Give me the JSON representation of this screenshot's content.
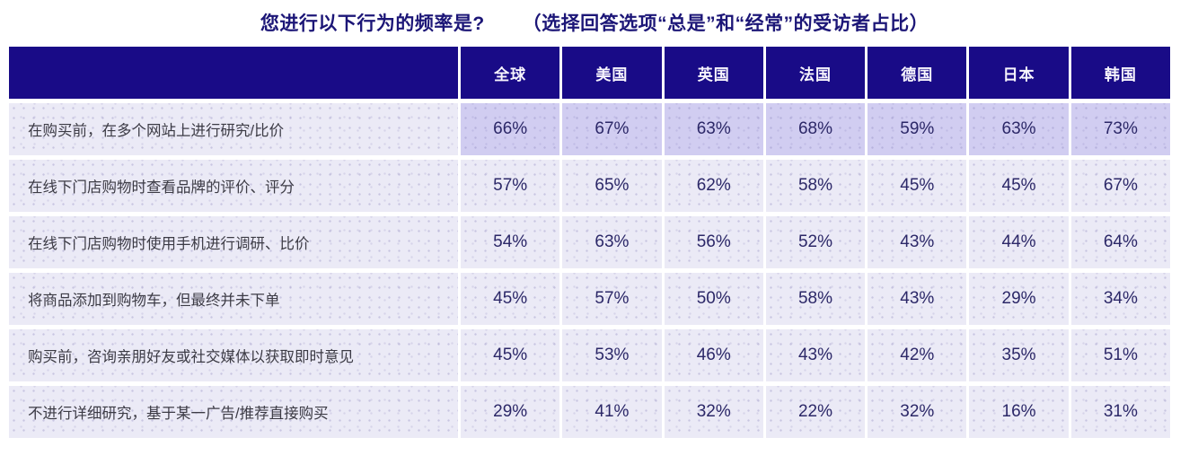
{
  "title": {
    "question": "您进行以下行为的频率是?",
    "note": "（选择回答选项“总是”和“经常”的受访者占比）"
  },
  "chart_data": {
    "type": "table",
    "title": "您进行以下行为的频率是? （选择回答选项“总是”和“经常”的受访者占比）",
    "columns": [
      "全球",
      "美国",
      "英国",
      "法国",
      "德国",
      "日本",
      "韩国"
    ],
    "rows": [
      {
        "label": "在购买前，在多个网站上进行研究/比价",
        "values": [
          "66%",
          "67%",
          "63%",
          "68%",
          "59%",
          "63%",
          "73%"
        ],
        "highlighted": true
      },
      {
        "label": "在线下门店购物时查看品牌的评价、评分",
        "values": [
          "57%",
          "65%",
          "62%",
          "58%",
          "45%",
          "45%",
          "67%"
        ],
        "highlighted": false
      },
      {
        "label": "在线下门店购物时使用手机进行调研、比价",
        "values": [
          "54%",
          "63%",
          "56%",
          "52%",
          "43%",
          "44%",
          "64%"
        ],
        "highlighted": false
      },
      {
        "label": "将商品添加到购物车，但最终并未下单",
        "values": [
          "45%",
          "57%",
          "50%",
          "58%",
          "43%",
          "29%",
          "34%"
        ],
        "highlighted": false
      },
      {
        "label": "购买前，咨询亲朋好友或社交媒体以获取即时意见",
        "values": [
          "45%",
          "53%",
          "46%",
          "43%",
          "42%",
          "35%",
          "51%"
        ],
        "highlighted": false
      },
      {
        "label": "不进行详细研究，基于某一广告/推荐直接购买",
        "values": [
          "29%",
          "41%",
          "32%",
          "22%",
          "32%",
          "16%",
          "31%"
        ],
        "highlighted": false
      }
    ]
  },
  "colors": {
    "header_bg": "#190b87",
    "header_text": "#f7f5fd",
    "row_bg": "#ebeaf6",
    "highlight_bg": "#d1cdf1",
    "label_text": "#3c3b45",
    "value_text": "#2c2868",
    "title_text": "#1c1677"
  }
}
